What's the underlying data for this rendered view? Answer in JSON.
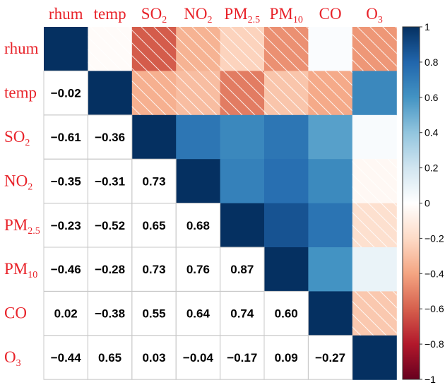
{
  "chart_data": {
    "type": "heatmap",
    "subtype": "correlation-matrix",
    "variables": [
      {
        "base": "rhum",
        "sub": ""
      },
      {
        "base": "temp",
        "sub": ""
      },
      {
        "base": "SO",
        "sub": "2"
      },
      {
        "base": "NO",
        "sub": "2"
      },
      {
        "base": "PM",
        "sub": "2.5"
      },
      {
        "base": "PM",
        "sub": "10"
      },
      {
        "base": "CO",
        "sub": ""
      },
      {
        "base": "O",
        "sub": "3"
      }
    ],
    "matrix": [
      [
        1,
        -0.02,
        -0.61,
        -0.35,
        -0.23,
        -0.46,
        0.02,
        -0.44
      ],
      [
        -0.02,
        1,
        -0.36,
        -0.31,
        -0.52,
        -0.28,
        -0.38,
        0.65
      ],
      [
        -0.61,
        -0.36,
        1,
        0.73,
        0.65,
        0.73,
        0.55,
        0.03
      ],
      [
        -0.35,
        -0.31,
        0.73,
        1,
        0.68,
        0.76,
        0.64,
        -0.04
      ],
      [
        -0.23,
        -0.52,
        0.65,
        0.68,
        1,
        0.87,
        0.74,
        -0.17
      ],
      [
        -0.46,
        -0.28,
        0.73,
        0.76,
        0.87,
        1,
        0.6,
        0.09
      ],
      [
        0.02,
        -0.38,
        0.55,
        0.64,
        0.74,
        0.6,
        1,
        -0.27
      ],
      [
        -0.44,
        0.65,
        0.03,
        -0.04,
        -0.17,
        0.09,
        -0.27,
        1
      ]
    ],
    "value_labels": [
      [
        "",
        "",
        "",
        "",
        "",
        "",
        "",
        ""
      ],
      [
        "−0.02",
        "",
        "",
        "",
        "",
        "",
        "",
        ""
      ],
      [
        "−0.61",
        "−0.36",
        "",
        "",
        "",
        "",
        "",
        ""
      ],
      [
        "−0.35",
        "−0.31",
        "0.73",
        "",
        "",
        "",
        "",
        ""
      ],
      [
        "−0.23",
        "−0.52",
        "0.65",
        "0.68",
        "",
        "",
        "",
        ""
      ],
      [
        "−0.46",
        "−0.28",
        "0.73",
        "0.76",
        "0.87",
        "",
        "",
        ""
      ],
      [
        "0.02",
        "−0.38",
        "0.55",
        "0.64",
        "0.74",
        "0.60",
        "",
        ""
      ],
      [
        "−0.44",
        "0.65",
        "0.03",
        "−0.04",
        "−0.17",
        "0.09",
        "−0.27",
        ""
      ]
    ],
    "lower_triangle": "numbers",
    "upper_triangle": "color",
    "negative_hatch": true,
    "colorbar": {
      "range": [
        -1,
        1
      ],
      "ticks": [
        "1",
        "0.8",
        "0.6",
        "0.4",
        "0.2",
        "0",
        "−0.2",
        "−0.4",
        "−0.6",
        "−0.8",
        "−1"
      ],
      "tick_values": [
        1,
        0.8,
        0.6,
        0.4,
        0.2,
        0,
        -0.2,
        -0.4,
        -0.6,
        -0.8,
        -1
      ],
      "colors": [
        "#67001f",
        "#b2182b",
        "#d6604d",
        "#f4a582",
        "#fddbc7",
        "#ffffff",
        "#d1e5f0",
        "#92c5de",
        "#4393c3",
        "#2166ac",
        "#053061"
      ]
    },
    "label_color": "#e8232a"
  }
}
